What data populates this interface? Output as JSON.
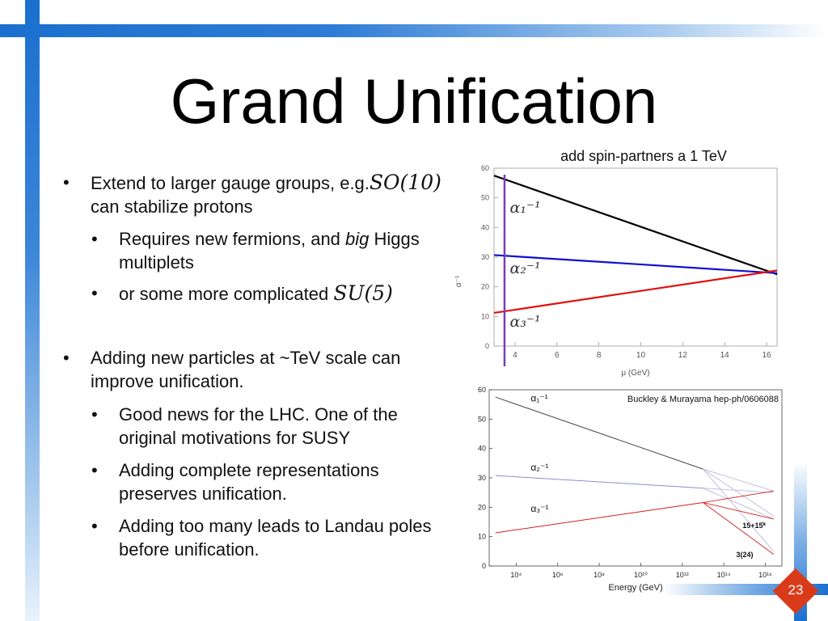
{
  "slide": {
    "title": "Grand Unification",
    "page_number": "23",
    "bullets": [
      {
        "level": 1,
        "text": "Extend to larger gauge groups, e.g.",
        "math": "SO(10)",
        "text2": "can stabilize protons"
      },
      {
        "level": 2,
        "text": "Requires new fermions, and ",
        "em": "big",
        "text2": " Higgs multiplets"
      },
      {
        "level": 2,
        "text": "or some more complicated ",
        "math": "SU(5)"
      },
      {
        "level": 1,
        "text": "Adding new particles at ~TeV scale can improve unification."
      },
      {
        "level": 2,
        "text": "Good news for the LHC. One of the original motivations for SUSY"
      },
      {
        "level": 2,
        "text": "Adding complete representations preserves unification."
      },
      {
        "level": 2,
        "text": "Adding too many leads to Landau poles before unification."
      }
    ],
    "bullet_char": "•"
  },
  "colors": {
    "accent_blue": "#1a6fcf",
    "page_badge": "#d93a1a",
    "alpha1": "#000000",
    "alpha2": "#1010d0",
    "alpha3": "#e01010",
    "marker": "#7b3fb0"
  },
  "chart_data": [
    {
      "type": "line",
      "title": "add spin-partners a 1 TeV",
      "xlabel": "μ (GeV)",
      "ylabel": "α⁻¹",
      "xlim": [
        3,
        16.5
      ],
      "ylim": [
        0,
        60
      ],
      "xticks": [
        "4",
        "6",
        "8",
        "10",
        "12",
        "14",
        "16"
      ],
      "yticks": [
        "0",
        "10",
        "20",
        "30",
        "40",
        "50",
        "60"
      ],
      "vertical_marker_x": 3.5,
      "series": [
        {
          "name": "α₁⁻¹",
          "color": "#000000",
          "x": [
            3,
            16.5
          ],
          "y": [
            57.5,
            24.2
          ]
        },
        {
          "name": "α₂⁻¹",
          "color": "#1010d0",
          "x": [
            3,
            16.5
          ],
          "y": [
            30.7,
            24.6
          ]
        },
        {
          "name": "α₃⁻¹",
          "color": "#e01010",
          "x": [
            3,
            16.5
          ],
          "y": [
            11.2,
            25.5
          ]
        }
      ],
      "series_labels": [
        {
          "text": "α₁⁻¹",
          "x": 3.6,
          "y": 45
        },
        {
          "text": "α₂⁻¹",
          "x": 3.6,
          "y": 24.5
        },
        {
          "text": "α₃⁻¹",
          "x": 3.6,
          "y": 6.5
        }
      ]
    },
    {
      "type": "line",
      "annotation": "Buckley & Murayama hep-ph/0606088",
      "xlabel": "Energy (GeV)",
      "xlim": [
        2.7,
        16.8
      ],
      "ylim": [
        0,
        60
      ],
      "xticks": [
        "10⁴",
        "10⁶",
        "10⁸",
        "10¹⁰",
        "10¹²",
        "10¹⁴",
        "10¹⁶"
      ],
      "xtick_values": [
        4,
        6,
        8,
        10,
        12,
        14,
        16
      ],
      "yticks": [
        "0",
        "10",
        "20",
        "30",
        "40",
        "50",
        "60"
      ],
      "series": [
        {
          "name": "α₁⁻¹",
          "color": "#444444",
          "x": [
            3,
            13
          ],
          "y": [
            57.5,
            33.0
          ]
        },
        {
          "name": "α₂⁻¹",
          "color": "#8a8fd0",
          "x": [
            3,
            13
          ],
          "y": [
            30.8,
            26.5
          ]
        },
        {
          "name": "α₃⁻¹",
          "color": "#d02020",
          "x": [
            3,
            13
          ],
          "y": [
            11.3,
            21.6
          ]
        }
      ],
      "branches": [
        {
          "color": "#bbbbdd",
          "x": [
            13,
            16.4
          ],
          "y": [
            33.0,
            25.5
          ]
        },
        {
          "color": "#bbbbdd",
          "x": [
            13,
            16.4
          ],
          "y": [
            33.0,
            17.0
          ]
        },
        {
          "color": "#bbbbdd",
          "x": [
            13,
            16.4
          ],
          "y": [
            33.0,
            5.0
          ]
        },
        {
          "color": "#bbbbdd",
          "x": [
            13,
            16.4
          ],
          "y": [
            26.5,
            25.0
          ]
        },
        {
          "color": "#bbbbdd",
          "x": [
            13,
            16.4
          ],
          "y": [
            26.5,
            16.0
          ]
        },
        {
          "color": "#d02020",
          "x": [
            13,
            16.4
          ],
          "y": [
            21.6,
            25.5
          ]
        },
        {
          "color": "#d02020",
          "x": [
            13,
            16.4
          ],
          "y": [
            21.6,
            16.0
          ]
        },
        {
          "color": "#d02020",
          "x": [
            13,
            16.4
          ],
          "y": [
            21.6,
            4.0
          ]
        }
      ],
      "series_labels": [
        {
          "text": "α₁⁻¹",
          "x": 4.7,
          "y": 56
        },
        {
          "text": "α₂⁻¹",
          "x": 4.7,
          "y": 32.5
        },
        {
          "text": "α₃⁻¹",
          "x": 4.7,
          "y": 18.5
        }
      ],
      "annotations": [
        {
          "text": "15+15̄*",
          "x": 14.9,
          "y": 13
        },
        {
          "text": "3(24)",
          "x": 14.6,
          "y": 3
        }
      ]
    }
  ]
}
